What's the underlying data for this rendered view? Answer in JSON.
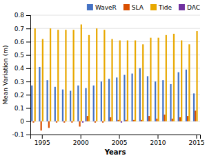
{
  "chart_data": {
    "type": "bar",
    "xlabel": "Years",
    "ylabel": "Mean Variation (m)",
    "x": [
      1994,
      1995,
      1996,
      1997,
      1998,
      1999,
      2000,
      2001,
      2002,
      2003,
      2004,
      2005,
      2006,
      2007,
      2008,
      2009,
      2010,
      2011,
      2012,
      2013,
      2014,
      2015
    ],
    "series": [
      {
        "name": "WaveR",
        "color": "#4472C4",
        "values": [
          0.27,
          0.41,
          0.31,
          0.26,
          0.24,
          0.23,
          0.27,
          0.25,
          0.27,
          0.3,
          0.32,
          0.33,
          0.35,
          0.36,
          0.4,
          0.34,
          0.3,
          0.31,
          0.28,
          0.37,
          0.39,
          0.21
        ]
      },
      {
        "name": "SLA",
        "color": "#D94F00",
        "values": [
          -0.01,
          -0.07,
          -0.05,
          -0.01,
          -0.01,
          -0.01,
          -0.04,
          0.04,
          -0.01,
          -0.01,
          0.03,
          0.01,
          0.01,
          0.01,
          0.01,
          0.04,
          0.02,
          0.05,
          0.02,
          0.03,
          0.04,
          0.08
        ]
      },
      {
        "name": "Tide",
        "color": "#E8A800",
        "values": [
          0.7,
          0.62,
          0.7,
          0.69,
          0.69,
          0.69,
          0.73,
          0.65,
          0.7,
          0.69,
          0.62,
          0.61,
          0.61,
          0.61,
          0.58,
          0.63,
          0.63,
          0.65,
          0.66,
          0.61,
          0.58,
          0.68
        ]
      },
      {
        "name": "DAC",
        "color": "#7030A0",
        "values": [
          0.0,
          0.0,
          0.0,
          0.0,
          0.0,
          0.0,
          -0.01,
          0.0,
          0.0,
          0.0,
          0.0,
          -0.01,
          0.0,
          0.0,
          0.0,
          0.0,
          0.0,
          0.0,
          0.0,
          0.0,
          0.0,
          0.0
        ]
      }
    ],
    "xlim": [
      1993.5,
      2015.5
    ],
    "xticks": [
      1995,
      2000,
      2005,
      2010,
      2015
    ],
    "ylim": [
      -0.1,
      0.8
    ],
    "yticks": [
      -0.1,
      0,
      0.1,
      0.2,
      0.3,
      0.4,
      0.5,
      0.6,
      0.7,
      0.8
    ],
    "grid": true,
    "legend": "upper right"
  }
}
